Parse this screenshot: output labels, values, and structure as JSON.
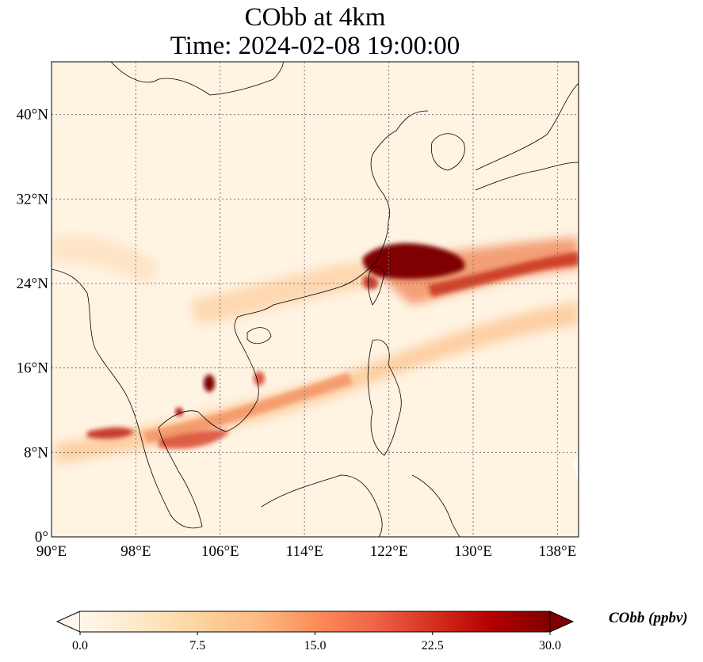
{
  "map": {
    "title_line1": "CObb at 4km",
    "title_line2": "Time: 2024-02-08 19:00:00",
    "extent": {
      "lon_min": 90,
      "lon_max": 140,
      "lat_min": 0,
      "lat_max": 45
    },
    "lon_ticks": [
      90,
      98,
      106,
      114,
      122,
      130,
      138
    ],
    "lon_labels": [
      "90°E",
      "98°E",
      "106°E",
      "114°E",
      "122°E",
      "130°E",
      "138°E"
    ],
    "lat_ticks": [
      0,
      8,
      16,
      24,
      32,
      40
    ],
    "lat_labels": [
      "0°",
      "8°N",
      "16°N",
      "24°N",
      "32°N",
      "40°N"
    ],
    "gridlines": "dotted",
    "colormap": "OrRd",
    "field_variable": "CObb",
    "level": "4km"
  },
  "colorbar": {
    "label": "CObb (ppbv)",
    "min": 0.0,
    "max": 30.0,
    "extend": "both",
    "ticks": [
      0,
      7.5,
      15,
      22.5,
      30
    ],
    "tick_labels": [
      "0.0",
      "7.5",
      "15.0",
      "22.5",
      "30.0"
    ],
    "colors": [
      "#fff7ec",
      "#fee8c8",
      "#fdd49e",
      "#fdbb84",
      "#fc8d59",
      "#ef6548",
      "#d7301f",
      "#b30000",
      "#7f0000"
    ]
  },
  "features": {
    "plumes": [
      {
        "name": "taiwan-strait-east-china-sea",
        "intensity": "max"
      },
      {
        "name": "east-transport-to-japan",
        "intensity": "high"
      },
      {
        "name": "cambodia-vietnam",
        "intensity": "max"
      },
      {
        "name": "south-china-sea-band",
        "intensity": "medium"
      },
      {
        "name": "southern-china",
        "intensity": "low"
      }
    ]
  }
}
